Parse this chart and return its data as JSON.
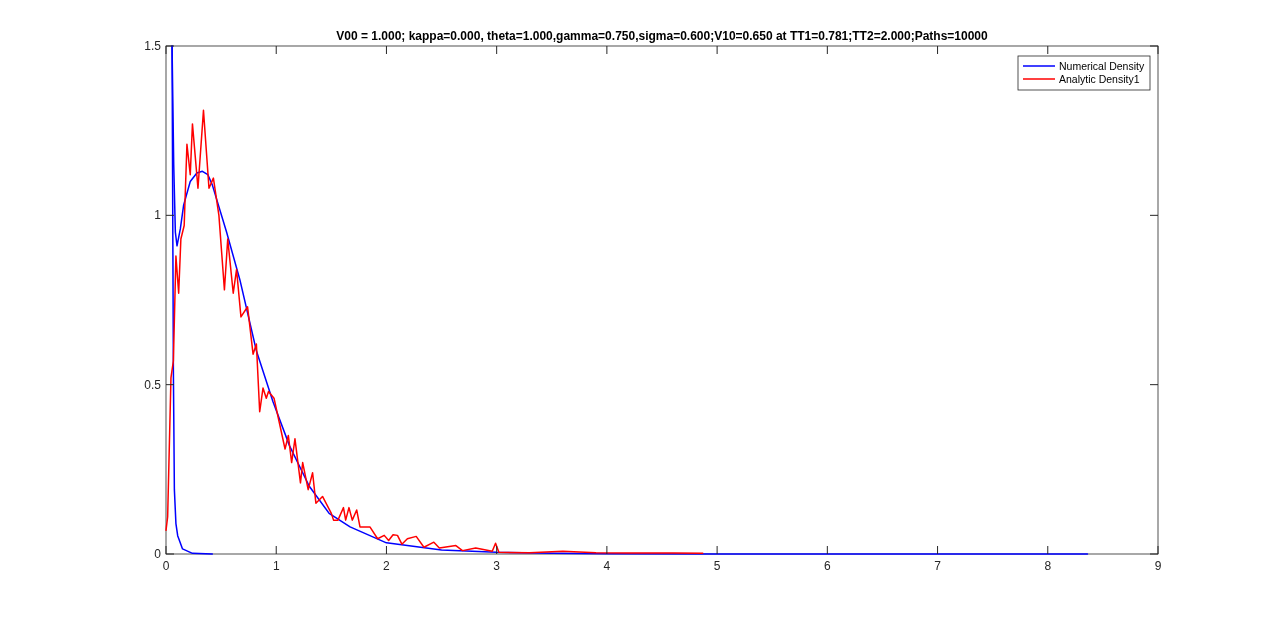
{
  "chart_data": {
    "type": "line",
    "title": "V00 = 1.000; kappa=0.000, theta=1.000,gamma=0.750,sigma=0.600;V10=0.650 at TT1=0.781;TT2=2.000;Paths=10000",
    "xlim": [
      0,
      9
    ],
    "xticks": [
      0,
      1,
      2,
      3,
      4,
      5,
      6,
      7,
      8,
      9
    ],
    "ylim": [
      0,
      1.5
    ],
    "yticks": [
      0,
      0.5,
      1,
      1.5
    ],
    "grid": false,
    "legend": "top right",
    "line_style": "solid",
    "marker": "none",
    "series": [
      {
        "name": "Numerical Density",
        "color": "#0000ff",
        "x": [
          0.055,
          0.07,
          0.085,
          0.1,
          0.13,
          0.16,
          0.22,
          0.28,
          0.33,
          0.38,
          0.42,
          0.55,
          0.67,
          0.82,
          0.97,
          1.12,
          1.3,
          1.48,
          1.67,
          2.0,
          2.5,
          3.0,
          3.5,
          4.0,
          5.0,
          6.0,
          7.0,
          8.36
        ],
        "values": [
          1.5,
          1.15,
          0.95,
          0.91,
          0.96,
          1.03,
          1.1,
          1.125,
          1.13,
          1.12,
          1.09,
          0.95,
          0.81,
          0.6,
          0.45,
          0.32,
          0.2,
          0.12,
          0.08,
          0.033,
          0.012,
          0.005,
          0.002,
          0.001,
          0,
          0,
          0,
          0
        ]
      },
      {
        "color": "#0000ff",
        "x": [
          0.055,
          0.067,
          0.076,
          0.09,
          0.106,
          0.15,
          0.24,
          0.42
        ],
        "values": [
          1.5,
          0.54,
          0.19,
          0.09,
          0.054,
          0.015,
          0.002,
          0
        ]
      },
      {
        "name": "Analytic Density1",
        "color": "#ff0000",
        "x": [
          0,
          0.015,
          0.045,
          0.067,
          0.09,
          0.115,
          0.135,
          0.165,
          0.19,
          0.22,
          0.24,
          0.29,
          0.34,
          0.39,
          0.43,
          0.48,
          0.53,
          0.56,
          0.61,
          0.64,
          0.68,
          0.74,
          0.79,
          0.82,
          0.85,
          0.88,
          0.91,
          0.93,
          0.98,
          1.02,
          1.08,
          1.11,
          1.14,
          1.17,
          1.22,
          1.24,
          1.29,
          1.33,
          1.36,
          1.42,
          1.5,
          1.52,
          1.56,
          1.61,
          1.63,
          1.66,
          1.69,
          1.73,
          1.76,
          1.85,
          1.92,
          1.98,
          2.02,
          2.06,
          2.1,
          2.14,
          2.19,
          2.27,
          2.34,
          2.43,
          2.48,
          2.63,
          2.69,
          2.81,
          2.96,
          2.99,
          3.02,
          3.3,
          3.6,
          3.9,
          4.2,
          4.6,
          4.87
        ],
        "values": [
          0.07,
          0.11,
          0.52,
          0.57,
          0.88,
          0.77,
          0.93,
          0.97,
          1.21,
          1.12,
          1.27,
          1.08,
          1.31,
          1.08,
          1.11,
          1.0,
          0.78,
          0.93,
          0.77,
          0.84,
          0.7,
          0.73,
          0.59,
          0.62,
          0.42,
          0.49,
          0.46,
          0.48,
          0.46,
          0.4,
          0.31,
          0.35,
          0.27,
          0.34,
          0.21,
          0.27,
          0.19,
          0.24,
          0.15,
          0.17,
          0.12,
          0.1,
          0.1,
          0.137,
          0.1,
          0.137,
          0.1,
          0.13,
          0.08,
          0.08,
          0.045,
          0.055,
          0.04,
          0.057,
          0.055,
          0.029,
          0.045,
          0.052,
          0.02,
          0.035,
          0.018,
          0.025,
          0.01,
          0.018,
          0.008,
          0.032,
          0.005,
          0.004,
          0.008,
          0.004,
          0.003,
          0.003,
          0.002
        ]
      }
    ]
  }
}
